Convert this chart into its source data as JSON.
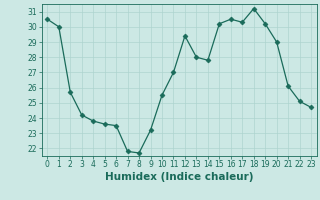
{
  "x": [
    0,
    1,
    2,
    3,
    4,
    5,
    6,
    7,
    8,
    9,
    10,
    11,
    12,
    13,
    14,
    15,
    16,
    17,
    18,
    19,
    20,
    21,
    22,
    23
  ],
  "y": [
    30.5,
    30.0,
    25.7,
    24.2,
    23.8,
    23.6,
    23.5,
    21.8,
    21.7,
    23.2,
    25.5,
    27.0,
    29.4,
    28.0,
    27.8,
    30.2,
    30.5,
    30.3,
    31.2,
    30.2,
    29.0,
    26.1,
    25.1,
    24.7
  ],
  "line_color": "#1a6b5a",
  "marker": "D",
  "marker_size": 2.5,
  "bg_color": "#cce8e4",
  "grid_color": "#aed4cf",
  "xlabel": "Humidex (Indice chaleur)",
  "xlim": [
    -0.5,
    23.5
  ],
  "ylim": [
    21.5,
    31.5
  ],
  "yticks": [
    22,
    23,
    24,
    25,
    26,
    27,
    28,
    29,
    30,
    31
  ],
  "xticks": [
    0,
    1,
    2,
    3,
    4,
    5,
    6,
    7,
    8,
    9,
    10,
    11,
    12,
    13,
    14,
    15,
    16,
    17,
    18,
    19,
    20,
    21,
    22,
    23
  ],
  "tick_label_fontsize": 5.5,
  "xlabel_fontsize": 7.5
}
